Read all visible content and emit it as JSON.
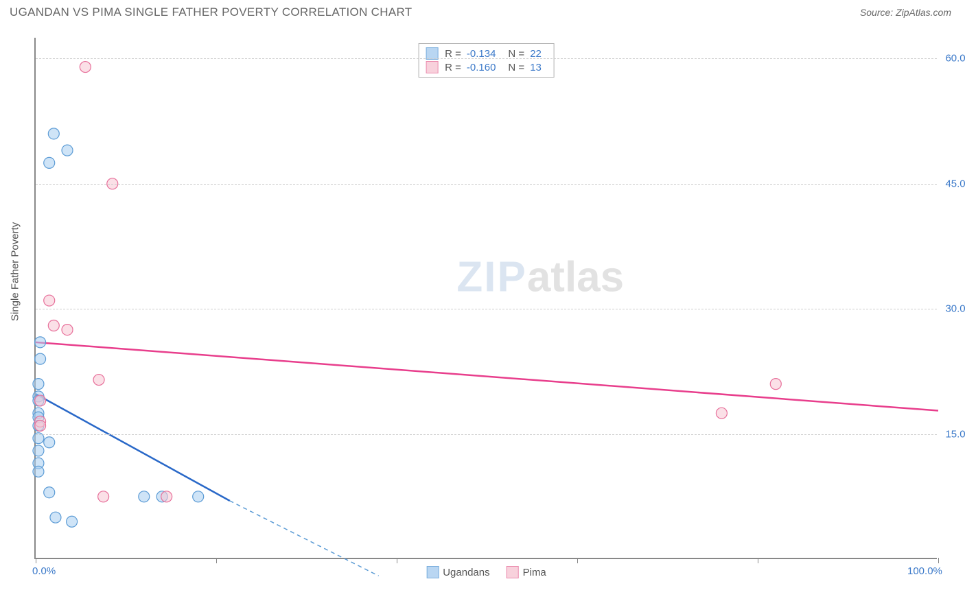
{
  "header": {
    "title": "UGANDAN VS PIMA SINGLE FATHER POVERTY CORRELATION CHART",
    "source": "Source: ZipAtlas.com"
  },
  "chart": {
    "type": "scatter",
    "yaxis_label": "Single Father Poverty",
    "background_color": "#ffffff",
    "grid_color": "#cccccc",
    "axis_color": "#888888",
    "label_color": "#3b79c9",
    "title_fontsize": 17,
    "label_fontsize": 15,
    "xlim": [
      0,
      100
    ],
    "ylim": [
      0,
      62.5
    ],
    "xtick_positions": [
      0,
      20,
      40,
      60,
      80,
      100
    ],
    "xtick_labels": {
      "0": "0.0%",
      "100": "100.0%"
    },
    "ytick_positions": [
      15,
      30,
      45,
      60
    ],
    "ytick_labels": {
      "15": "15.0%",
      "30": "30.0%",
      "45": "45.0%",
      "60": "60.0%"
    },
    "marker_radius": 8,
    "marker_opacity": 0.55,
    "line_width": 2.5,
    "watermark": {
      "part1": "ZIP",
      "part2": "atlas"
    }
  },
  "series": {
    "ugandans": {
      "label": "Ugandans",
      "fill_color": "#a8cdf0",
      "stroke_color": "#5b9bd5",
      "line_color": "#2968c8",
      "R": "-0.134",
      "N": "22",
      "points": [
        [
          2.0,
          51.0
        ],
        [
          3.5,
          49.0
        ],
        [
          1.5,
          47.5
        ],
        [
          0.5,
          26.0
        ],
        [
          0.5,
          24.0
        ],
        [
          0.3,
          21.0
        ],
        [
          0.3,
          19.5
        ],
        [
          0.3,
          19.0
        ],
        [
          0.3,
          17.5
        ],
        [
          0.3,
          17.0
        ],
        [
          0.3,
          16.0
        ],
        [
          0.3,
          14.5
        ],
        [
          1.5,
          14.0
        ],
        [
          0.3,
          13.0
        ],
        [
          0.3,
          11.5
        ],
        [
          0.3,
          10.5
        ],
        [
          1.5,
          8.0
        ],
        [
          12.0,
          7.5
        ],
        [
          14.0,
          7.5
        ],
        [
          18.0,
          7.5
        ],
        [
          2.2,
          5.0
        ],
        [
          4.0,
          4.5
        ]
      ],
      "trend": {
        "x1": 0,
        "y1": 19.8,
        "x2": 21.5,
        "y2": 7.0,
        "dash_x2": 38,
        "dash_y2": -2
      }
    },
    "pima": {
      "label": "Pima",
      "fill_color": "#f7c6d4",
      "stroke_color": "#e76f9a",
      "line_color": "#e83e8c",
      "R": "-0.160",
      "N": "13",
      "points": [
        [
          5.5,
          59.0
        ],
        [
          8.5,
          45.0
        ],
        [
          1.5,
          31.0
        ],
        [
          2.0,
          28.0
        ],
        [
          3.5,
          27.5
        ],
        [
          7.0,
          21.5
        ],
        [
          0.5,
          16.5
        ],
        [
          0.5,
          16.0
        ],
        [
          76.0,
          17.5
        ],
        [
          82.0,
          21.0
        ],
        [
          7.5,
          7.5
        ],
        [
          14.5,
          7.5
        ],
        [
          0.5,
          19.0
        ]
      ],
      "trend": {
        "x1": 0,
        "y1": 26.0,
        "x2": 100,
        "y2": 17.8
      }
    }
  },
  "legend_top": [
    {
      "series": "ugandans"
    },
    {
      "series": "pima"
    }
  ],
  "legend_bottom": [
    {
      "series": "ugandans"
    },
    {
      "series": "pima"
    }
  ]
}
